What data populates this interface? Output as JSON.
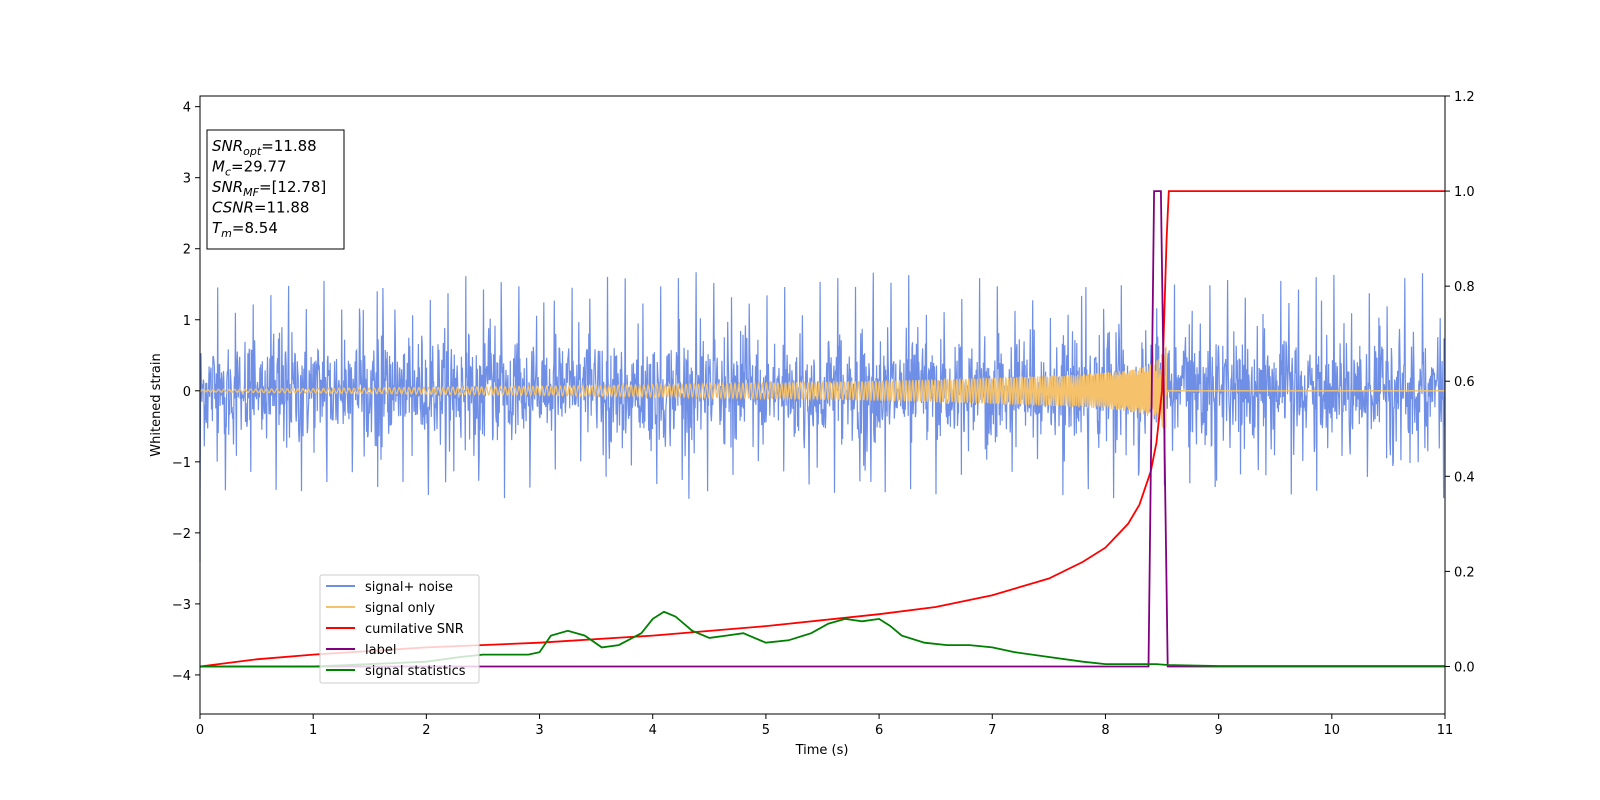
{
  "chart_data": {
    "type": "line",
    "xlabel": "Time (s)",
    "ylabel": "Whitened strain",
    "xlim": [
      0,
      11
    ],
    "ylim_left": [
      -4.55,
      4.15
    ],
    "ylim_right": [
      -0.1,
      1.2
    ],
    "x_ticks": [
      0,
      1,
      2,
      3,
      4,
      5,
      6,
      7,
      8,
      9,
      10,
      11
    ],
    "y_left_ticks": [
      -4,
      -3,
      -2,
      -1,
      0,
      1,
      2,
      3,
      4
    ],
    "y_right_ticks": [
      0.0,
      0.2,
      0.4,
      0.6,
      0.8,
      1.0,
      1.2
    ],
    "grid": false,
    "legend_position": "lower-left",
    "annotation": {
      "lines": [
        {
          "sym": "SNR",
          "sub": "opt",
          "rest": "=11.88"
        },
        {
          "sym": "M",
          "sub": "c",
          "rest": "=29.77"
        },
        {
          "sym": "SNR",
          "sub": "MF",
          "rest": "=[12.78]"
        },
        {
          "sym": "CSNR",
          "sub": "",
          "rest": "=11.88"
        },
        {
          "sym": "T",
          "sub": "m",
          "rest": "=8.54"
        }
      ]
    },
    "series": [
      {
        "name": "signal+ noise",
        "axis": "left",
        "color": "#6f8fe6",
        "kind": "noise",
        "description_values": {
          "center": 0.0,
          "typical_amplitude": 0.75,
          "max_peak": 1.68,
          "min_peak": -1.52
        }
      },
      {
        "name": "signal only",
        "axis": "left",
        "color": "#f5c26b",
        "kind": "chirp",
        "description_values": {
          "merger_time": 8.54,
          "peak_amplitude": 0.7
        }
      },
      {
        "name": "cumilative SNR",
        "axis": "right",
        "color": "#ff0000",
        "x": [
          0,
          0.5,
          1,
          2,
          3,
          4,
          5,
          6,
          6.5,
          7,
          7.5,
          7.8,
          8.0,
          8.2,
          8.3,
          8.4,
          8.45,
          8.5,
          8.54,
          8.56,
          9,
          10,
          11
        ],
        "y": [
          0.0,
          0.015,
          0.025,
          0.04,
          0.05,
          0.065,
          0.085,
          0.11,
          0.125,
          0.15,
          0.185,
          0.22,
          0.25,
          0.3,
          0.34,
          0.41,
          0.47,
          0.58,
          0.9,
          1.0,
          1.0,
          1.0,
          1.0
        ]
      },
      {
        "name": "label",
        "axis": "right",
        "color": "#800080",
        "x": [
          0,
          8.38,
          8.43,
          8.49,
          8.55,
          11
        ],
        "y": [
          0.0,
          0.0,
          1.0,
          1.0,
          0.0,
          0.0
        ]
      },
      {
        "name": "signal statistics",
        "axis": "right",
        "color": "#008000",
        "x": [
          0,
          1,
          2,
          2.3,
          2.5,
          2.7,
          2.9,
          3.0,
          3.1,
          3.25,
          3.4,
          3.55,
          3.7,
          3.9,
          4.0,
          4.1,
          4.2,
          4.35,
          4.5,
          4.65,
          4.8,
          5.0,
          5.2,
          5.4,
          5.55,
          5.7,
          5.85,
          6.0,
          6.1,
          6.2,
          6.4,
          6.6,
          6.8,
          7.0,
          7.2,
          7.5,
          7.8,
          8.0,
          8.3,
          8.45,
          8.55,
          9,
          10,
          11
        ],
        "y": [
          0.0,
          0.0,
          0.01,
          0.02,
          0.025,
          0.025,
          0.025,
          0.03,
          0.065,
          0.075,
          0.065,
          0.04,
          0.045,
          0.07,
          0.1,
          0.115,
          0.105,
          0.075,
          0.06,
          0.065,
          0.07,
          0.05,
          0.055,
          0.07,
          0.09,
          0.1,
          0.095,
          0.1,
          0.085,
          0.065,
          0.05,
          0.045,
          0.045,
          0.04,
          0.03,
          0.02,
          0.01,
          0.005,
          0.005,
          0.005,
          0.003,
          0.001,
          0.001,
          0.001
        ]
      }
    ],
    "legend": [
      "signal+ noise",
      "signal only",
      "cumilative SNR",
      "label",
      "signal statistics"
    ]
  }
}
